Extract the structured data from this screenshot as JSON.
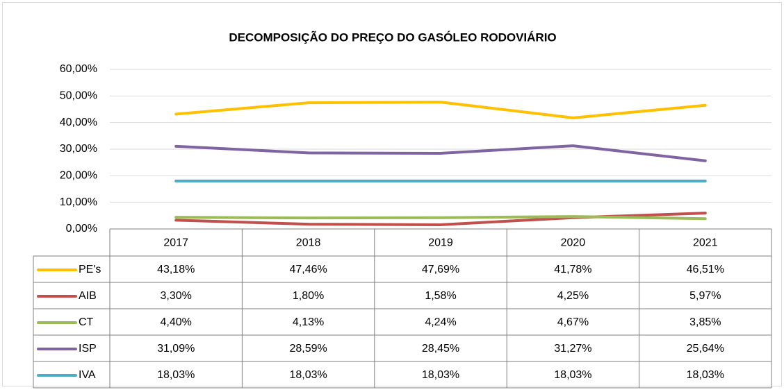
{
  "chart_data": {
    "type": "line",
    "title": "DECOMPOSIÇÃO  DO PREÇO DO GASÓLEO RODOVIÁRIO",
    "categories": [
      "2017",
      "2018",
      "2019",
      "2020",
      "2021"
    ],
    "ylim": [
      0,
      60
    ],
    "yticks": [
      {
        "value": 0,
        "label": "0,00%"
      },
      {
        "value": 10,
        "label": "10,00%"
      },
      {
        "value": 20,
        "label": "20,00%"
      },
      {
        "value": 30,
        "label": "30,00%"
      },
      {
        "value": 40,
        "label": "40,00%"
      },
      {
        "value": 50,
        "label": "50,00%"
      },
      {
        "value": 60,
        "label": "60,00%"
      }
    ],
    "grid": true,
    "series": [
      {
        "name": "PE's",
        "color": "#ffc000",
        "values": [
          43.18,
          47.46,
          47.69,
          41.78,
          46.51
        ],
        "value_labels": [
          "43,18%",
          "47,46%",
          "47,69%",
          "41,78%",
          "46,51%"
        ]
      },
      {
        "name": "AIB",
        "color": "#c0504d",
        "values": [
          3.3,
          1.8,
          1.58,
          4.25,
          5.97
        ],
        "value_labels": [
          "3,30%",
          "1,80%",
          "1,58%",
          "4,25%",
          "5,97%"
        ]
      },
      {
        "name": "CT",
        "color": "#9bbb59",
        "values": [
          4.4,
          4.13,
          4.24,
          4.67,
          3.85
        ],
        "value_labels": [
          "4,40%",
          "4,13%",
          "4,24%",
          "4,67%",
          "3,85%"
        ]
      },
      {
        "name": "ISP",
        "color": "#8064a2",
        "values": [
          31.09,
          28.59,
          28.45,
          31.27,
          25.64
        ],
        "value_labels": [
          "31,09%",
          "28,59%",
          "28,45%",
          "31,27%",
          "25,64%"
        ]
      },
      {
        "name": "IVA",
        "color": "#4bacc6",
        "values": [
          18.03,
          18.03,
          18.03,
          18.03,
          18.03
        ],
        "value_labels": [
          "18,03%",
          "18,03%",
          "18,03%",
          "18,03%",
          "18,03%"
        ]
      }
    ]
  }
}
